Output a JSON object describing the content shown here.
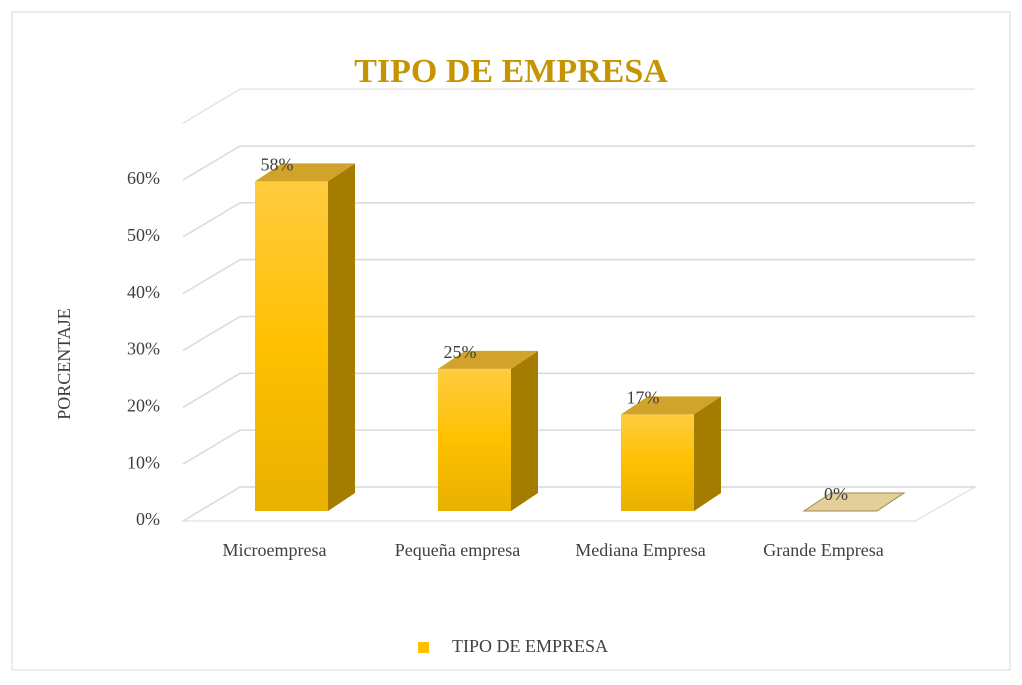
{
  "chart_data": {
    "type": "bar3d",
    "title": "TIPO DE EMPRESA",
    "y_label": "PORCENTAJE",
    "categories": [
      "Microempresa",
      "Pequeña empresa",
      "Mediana Empresa",
      "Grande Empresa"
    ],
    "series": [
      {
        "name": "TIPO DE EMPRESA",
        "color": "#ffc000",
        "values": [
          58,
          25,
          17,
          0
        ],
        "value_labels": [
          "58%",
          "25%",
          "17%",
          "0%"
        ]
      }
    ],
    "ylim": [
      0,
      70
    ],
    "yticks": [
      {
        "value": 0,
        "label": "0%"
      },
      {
        "value": 10,
        "label": "10%"
      },
      {
        "value": 20,
        "label": "20%"
      },
      {
        "value": 30,
        "label": "30%"
      },
      {
        "value": 40,
        "label": "40%"
      },
      {
        "value": 50,
        "label": "50%"
      },
      {
        "value": 60,
        "label": "60%"
      }
    ],
    "grid": true,
    "legend": "bottom"
  }
}
